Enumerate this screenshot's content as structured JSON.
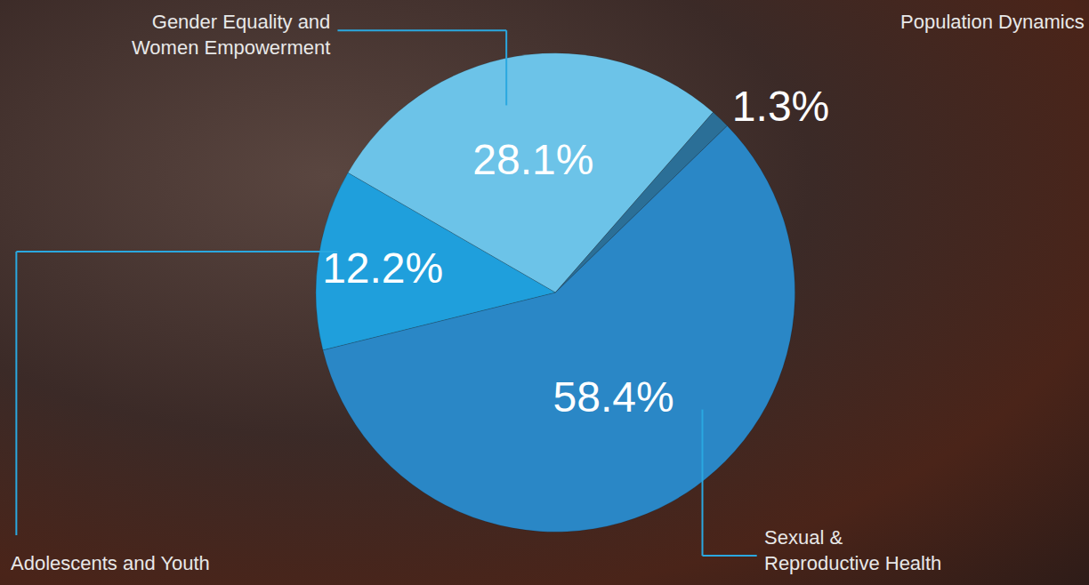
{
  "chart_data": {
    "type": "pie",
    "categories": [
      "Gender Equality and Women Empowerment",
      "Population Dynamics",
      "Sexual & Reproductive Health",
      "Adolescents and Youth"
    ],
    "values": [
      28.1,
      1.3,
      58.4,
      12.2
    ],
    "value_labels": [
      "28.1%",
      "1.3%",
      "58.4%",
      "12.2%"
    ],
    "colors": [
      "#6cc3e8",
      "#2b6f97",
      "#2a87c6",
      "#1f9fdc"
    ],
    "data_labels": true
  }
}
